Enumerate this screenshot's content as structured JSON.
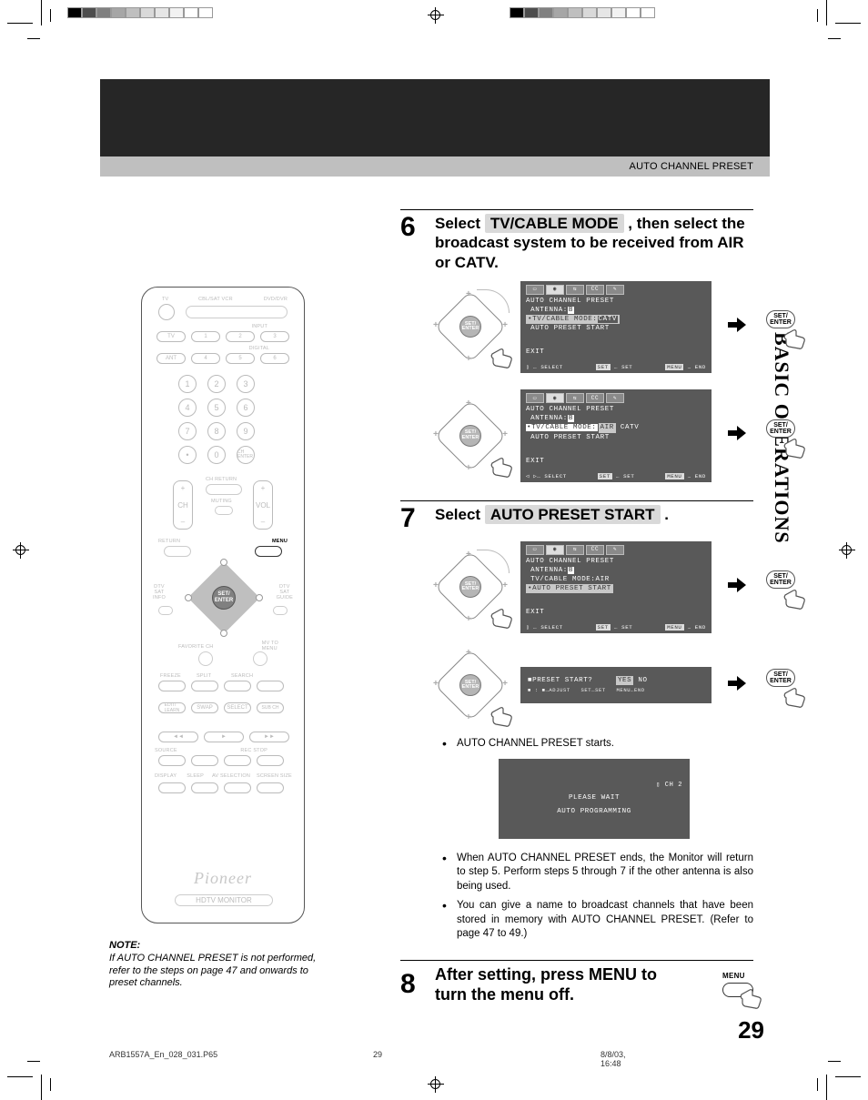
{
  "header_section": "AUTO CHANNEL PRESET",
  "side_tab": "BASIC OPERATIONS",
  "page_number": "29",
  "footer": {
    "file": "ARB1557A_En_028_031.P65",
    "page": "29",
    "date": "8/8/03, 16:48"
  },
  "colorbar_colors": [
    "#000000",
    "#4d4d4d",
    "#808080",
    "#a6a6a6",
    "#bfbfbf",
    "#d9d9d9",
    "#e6e6e6",
    "#f2f2f2",
    "#ffffff",
    "#ffffff"
  ],
  "remote": {
    "top_labels": [
      "TV",
      "CBL/SAT VCR",
      "DVD/DVR"
    ],
    "input_row": [
      "TV",
      "1",
      "2",
      "3"
    ],
    "digital_row": [
      "ANT",
      "4",
      "5",
      "6"
    ],
    "input_lbl": "INPUT",
    "digital_lbl": "DIGITAL",
    "keypad": [
      [
        "1",
        "2",
        "3"
      ],
      [
        "4",
        "5",
        "6"
      ],
      [
        "7",
        "8",
        "9"
      ],
      [
        "•",
        "0",
        "CH ENTER"
      ]
    ],
    "ch_lbl": "CH",
    "vol_lbl": "VOL",
    "ch_return": "CH RETURN",
    "muting": "MUTING",
    "return": "RETURN",
    "menu": "MENU",
    "set_enter": "SET/\nENTER",
    "left_mid": "DTV\nSAT\nINFO",
    "right_mid": "DTV\nSAT\nGUIDE",
    "fav": "FAVORITE CH",
    "mvto": "MV TO\nMENU",
    "mid_row1": [
      "FREEZE",
      "SPLIT",
      "SEARCH"
    ],
    "mid_row2": [
      "EDIT/\nLEARN",
      "SWAP",
      "SELECT",
      "SUB CH"
    ],
    "transport": [
      "◄◄",
      "►",
      "►►"
    ],
    "source": "SOURCE",
    "rec_stop": "REC STOP",
    "bottom_row": [
      "DISPLAY",
      "SLEEP",
      "AV SELECTION",
      "SCREEN SIZE"
    ],
    "brand": "Pioneer",
    "monitor": "HDTV MONITOR"
  },
  "note": {
    "head": "NOTE:",
    "body": "If AUTO CHANNEL PRESET is not performed, refer to the steps on page 47 and onwards to preset channels."
  },
  "set_enter": "SET/\nENTER",
  "step6": {
    "num": "6",
    "title_a": "Select ",
    "hl": "TV/CABLE MODE",
    "title_b": " , then select the broadcast system to be received from AIR or CATV.",
    "osd1": {
      "title": "AUTO CHANNEL PRESET",
      "l1a": " ANTENNA:",
      "l1b": "B",
      "l2a": "•TV/CABLE MODE:",
      "l2b": "CATV",
      "l3": " AUTO PRESET START",
      "exit": "EXIT",
      "foot": {
        "sel": "SELECT",
        "set": "SET",
        "end": "END",
        "k_set": "SET",
        "k_menu": "MENU"
      }
    },
    "osd2": {
      "title": "AUTO CHANNEL PRESET",
      "l1a": " ANTENNA:",
      "l1b": "B",
      "l2": "•TV/CABLE MODE:",
      "l2opts": "AIR CATV",
      "l2sel": "AIR",
      "l3": " AUTO PRESET START",
      "exit": "EXIT"
    }
  },
  "step7": {
    "num": "7",
    "title_a": "Select ",
    "hl": "AUTO PRESET START",
    "title_b": " .",
    "osd1": {
      "title": "AUTO CHANNEL PRESET",
      "l1a": " ANTENNA:",
      "l1b": "B",
      "l2": " TV/CABLE MODE:AIR",
      "l3": "•AUTO PRESET START",
      "exit": "EXIT"
    },
    "osd2": {
      "q": "■PRESET START?",
      "yes": "YES",
      "no": "NO",
      "foot": "■ : ■…ADJUST   SET…SET   MENU…END"
    },
    "bullet_starts": "AUTO CHANNEL PRESET starts.",
    "osd3": {
      "ch": "CH  2",
      "wait": "PLEASE WAIT",
      "prog": "AUTO PROGRAMMING"
    },
    "bullets": [
      "When AUTO CHANNEL PRESET ends, the Monitor will return to step 5. Perform steps 5 through 7 if the other antenna is also being used.",
      "You can give a name to broadcast channels that have been stored in memory with AUTO CHANNEL PRESET. (Refer to page 47 to 49.)"
    ]
  },
  "step8": {
    "num": "8",
    "title": "After setting, press MENU to turn the menu off.",
    "menu_lbl": "MENU"
  }
}
